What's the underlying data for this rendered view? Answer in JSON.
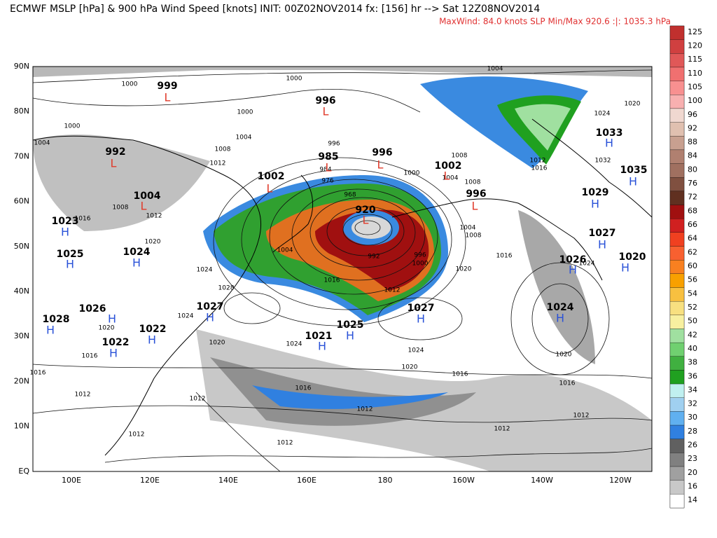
{
  "header": {
    "title": "ECMWF MSLP [hPa] & 900 hPa Wind Speed [knots] INIT: 00Z02NOV2014 fx: [156] hr --> Sat 12Z08NOV2014",
    "subtitle": "MaxWind:  84.0 knots   SLP Min/Max 920.6 :|: 1035.3 hPa"
  },
  "map": {
    "lat_ticks": [
      "90N",
      "80N",
      "70N",
      "60N",
      "50N",
      "40N",
      "30N",
      "20N",
      "10N",
      "EQ"
    ],
    "lon_ticks": [
      "100E",
      "120E",
      "140E",
      "160E",
      "180",
      "160W",
      "140W",
      "120W"
    ],
    "centers": [
      {
        "symbol": "L",
        "pressure": "999"
      },
      {
        "symbol": "L",
        "pressure": "996"
      },
      {
        "symbol": "L",
        "pressure": "992"
      },
      {
        "symbol": "L",
        "pressure": "985"
      },
      {
        "symbol": "L",
        "pressure": "996"
      },
      {
        "symbol": "L",
        "pressure": "1002"
      },
      {
        "symbol": "L",
        "pressure": "1004"
      },
      {
        "symbol": "L",
        "pressure": "920"
      },
      {
        "symbol": "L",
        "pressure": "1002"
      },
      {
        "symbol": "L",
        "pressure": "996"
      },
      {
        "symbol": "H",
        "pressure": "1023"
      },
      {
        "symbol": "H",
        "pressure": "1025"
      },
      {
        "symbol": "H",
        "pressure": "1024"
      },
      {
        "symbol": "H",
        "pressure": "1027"
      },
      {
        "symbol": "H",
        "pressure": "1026"
      },
      {
        "symbol": "H",
        "pressure": "1028"
      },
      {
        "symbol": "H",
        "pressure": "1022"
      },
      {
        "symbol": "H",
        "pressure": "1022"
      },
      {
        "symbol": "H",
        "pressure": "1021"
      },
      {
        "symbol": "H",
        "pressure": "1025"
      },
      {
        "symbol": "H",
        "pressure": "1027"
      },
      {
        "symbol": "H",
        "pressure": "1024"
      },
      {
        "symbol": "H",
        "pressure": "1026"
      },
      {
        "symbol": "H",
        "pressure": "1027"
      },
      {
        "symbol": "H",
        "pressure": "1029"
      },
      {
        "symbol": "H",
        "pressure": "1035"
      },
      {
        "symbol": "H",
        "pressure": "1033"
      },
      {
        "symbol": "H",
        "pressure": "1020"
      }
    ],
    "contour_labels": [
      "1000",
      "1000",
      "1004",
      "1000",
      "1000",
      "1004",
      "1008",
      "1004",
      "996",
      "1012",
      "984",
      "976",
      "968",
      "1004",
      "1016",
      "1012",
      "992",
      "996",
      "1000",
      "1020",
      "1004",
      "1008",
      "1016",
      "1024",
      "1024",
      "1020",
      "1016",
      "1020",
      "1016",
      "1016",
      "1012",
      "1012",
      "1012",
      "1012",
      "1012",
      "1012",
      "1020",
      "1028",
      "1024",
      "1024",
      "1020",
      "1016",
      "1012",
      "1008",
      "1004",
      "1008",
      "1000",
      "1016",
      "1012",
      "1008",
      "1020",
      "1024",
      "1016",
      "1012",
      "1016",
      "1020",
      "1032",
      "1024"
    ]
  },
  "colorbar": {
    "levels": [
      "125",
      "120",
      "115",
      "110",
      "105",
      "100",
      "96",
      "92",
      "88",
      "84",
      "80",
      "76",
      "72",
      "68",
      "66",
      "64",
      "62",
      "60",
      "56",
      "54",
      "52",
      "50",
      "42",
      "40",
      "38",
      "36",
      "34",
      "32",
      "30",
      "28",
      "26",
      "23",
      "20",
      "16",
      "14"
    ],
    "colors": [
      "#c0302e",
      "#d04040",
      "#e05858",
      "#f07070",
      "#f89090",
      "#f8b0b0",
      "#f0d8d0",
      "#e0c0b0",
      "#c8a090",
      "#b08070",
      "#a07060",
      "#805040",
      "#603020",
      "#a01010",
      "#d02020",
      "#f04020",
      "#f86030",
      "#f88020",
      "#f8a000",
      "#f8c040",
      "#f8e080",
      "#f8f0a0",
      "#a0e0a0",
      "#70d070",
      "#40b040",
      "#20a020",
      "#c0f0f0",
      "#a0d0f0",
      "#60b0f0",
      "#3080e0",
      "#606060",
      "#808080",
      "#a0a0a0",
      "#c8c8c8",
      "#ffffff"
    ]
  }
}
